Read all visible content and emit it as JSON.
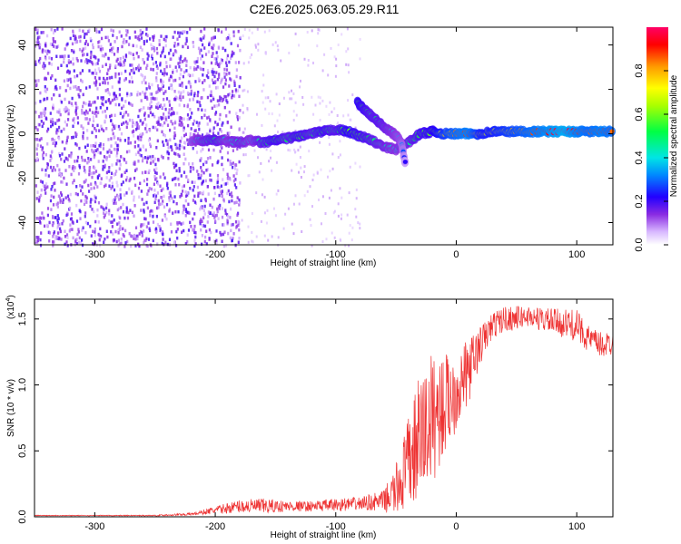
{
  "title": "C2E6.2025.063.05.29.R11",
  "chart_data": [
    {
      "type": "heatmap",
      "xlabel": "Height of straight line (km)",
      "ylabel": "Frequency (Hz)",
      "xlim": [
        -350,
        130
      ],
      "ylim": [
        -50,
        48
      ],
      "xticks": [
        -300,
        -200,
        -100,
        0,
        100
      ],
      "yticks": [
        -40,
        -20,
        0,
        20,
        40
      ],
      "colorbar": {
        "label": "Normalized spectral amplitude",
        "range": [
          0,
          1
        ],
        "ticks": [
          "0.0",
          "0.2",
          "0.4",
          "0.6",
          "0.8"
        ],
        "tick_values": [
          0,
          0.2,
          0.4,
          0.6,
          0.8
        ]
      },
      "ridge": [
        {
          "x": -220,
          "y": -3,
          "a": 0.35
        },
        {
          "x": -210,
          "y": -3,
          "a": 0.45
        },
        {
          "x": -200,
          "y": -3,
          "a": 0.5
        },
        {
          "x": -190,
          "y": -3,
          "a": 0.4
        },
        {
          "x": -180,
          "y": -4,
          "a": 0.45
        },
        {
          "x": -170,
          "y": -3,
          "a": 0.4
        },
        {
          "x": -160,
          "y": -4,
          "a": 0.5
        },
        {
          "x": -150,
          "y": -3,
          "a": 0.55
        },
        {
          "x": -140,
          "y": -2,
          "a": 0.5
        },
        {
          "x": -130,
          "y": -1,
          "a": 0.55
        },
        {
          "x": -120,
          "y": 0,
          "a": 0.5
        },
        {
          "x": -110,
          "y": 1,
          "a": 0.55
        },
        {
          "x": -100,
          "y": 2,
          "a": 0.5
        },
        {
          "x": -90,
          "y": 1,
          "a": 0.6
        },
        {
          "x": -80,
          "y": -1,
          "a": 0.55
        },
        {
          "x": -70,
          "y": -3,
          "a": 0.5
        },
        {
          "x": -60,
          "y": -6,
          "a": 0.45
        },
        {
          "x": -50,
          "y": -7,
          "a": 0.4
        },
        {
          "x": -40,
          "y": -4,
          "a": 0.45
        },
        {
          "x": -30,
          "y": 0,
          "a": 0.55
        },
        {
          "x": -20,
          "y": 1,
          "a": 0.6
        },
        {
          "x": -10,
          "y": 0,
          "a": 0.75
        },
        {
          "x": 0,
          "y": 0,
          "a": 0.85
        },
        {
          "x": 10,
          "y": 0,
          "a": 0.9
        },
        {
          "x": 20,
          "y": 0,
          "a": 0.7
        },
        {
          "x": 30,
          "y": 1,
          "a": 0.7
        },
        {
          "x": 40,
          "y": 1,
          "a": 0.75
        },
        {
          "x": 50,
          "y": 1,
          "a": 0.8
        },
        {
          "x": 60,
          "y": 1,
          "a": 0.85
        },
        {
          "x": 70,
          "y": 1,
          "a": 0.9
        },
        {
          "x": 80,
          "y": 1,
          "a": 0.95
        },
        {
          "x": 90,
          "y": 1,
          "a": 1.0
        },
        {
          "x": 100,
          "y": 1,
          "a": 0.9
        },
        {
          "x": 110,
          "y": 1,
          "a": 0.85
        },
        {
          "x": 120,
          "y": 1,
          "a": 0.9
        },
        {
          "x": 130,
          "y": 1,
          "a": 0.85
        }
      ],
      "branch": [
        {
          "x": -82,
          "y": 14,
          "a": 0.6
        },
        {
          "x": -76,
          "y": 11,
          "a": 0.55
        },
        {
          "x": -70,
          "y": 8,
          "a": 0.5
        },
        {
          "x": -64,
          "y": 5,
          "a": 0.5
        },
        {
          "x": -58,
          "y": 2,
          "a": 0.45
        },
        {
          "x": -52,
          "y": 0,
          "a": 0.4
        },
        {
          "x": -46,
          "y": -3,
          "a": 0.35
        },
        {
          "x": -42,
          "y": -14,
          "a": 0.2
        }
      ]
    },
    {
      "type": "line",
      "xlabel": "Height of straight line (km)",
      "ylabel": "SNR (10 * v/v)",
      "yscale_label": "(x10",
      "yscale_exp": "4",
      "xlim": [
        -350,
        130
      ],
      "ylim": [
        0,
        1.65
      ],
      "xticks": [
        -300,
        -200,
        -100,
        0,
        100
      ],
      "yticks": [
        "0.0",
        "0.5",
        "1.0",
        "1.5"
      ],
      "ytick_values": [
        0,
        0.5,
        1.0,
        1.5
      ],
      "series": [
        {
          "color": "#ee3333",
          "x": [
            -350,
            -300,
            -250,
            -220,
            -200,
            -180,
            -160,
            -140,
            -120,
            -100,
            -80,
            -60,
            -50,
            -40,
            -30,
            -20,
            -10,
            0,
            10,
            20,
            30,
            40,
            60,
            80,
            100,
            110,
            120,
            130
          ],
          "y": [
            0.01,
            0.01,
            0.01,
            0.02,
            0.05,
            0.08,
            0.08,
            0.08,
            0.08,
            0.09,
            0.1,
            0.12,
            0.2,
            0.4,
            0.6,
            0.75,
            0.85,
            0.95,
            1.1,
            1.3,
            1.45,
            1.5,
            1.52,
            1.48,
            1.45,
            1.35,
            1.3,
            1.32
          ],
          "spread": [
            0.003,
            0.003,
            0.004,
            0.01,
            0.03,
            0.05,
            0.06,
            0.04,
            0.04,
            0.05,
            0.05,
            0.08,
            0.2,
            0.35,
            0.5,
            0.5,
            0.4,
            0.3,
            0.25,
            0.15,
            0.1,
            0.1,
            0.08,
            0.1,
            0.12,
            0.1,
            0.1,
            0.1
          ]
        }
      ]
    }
  ]
}
